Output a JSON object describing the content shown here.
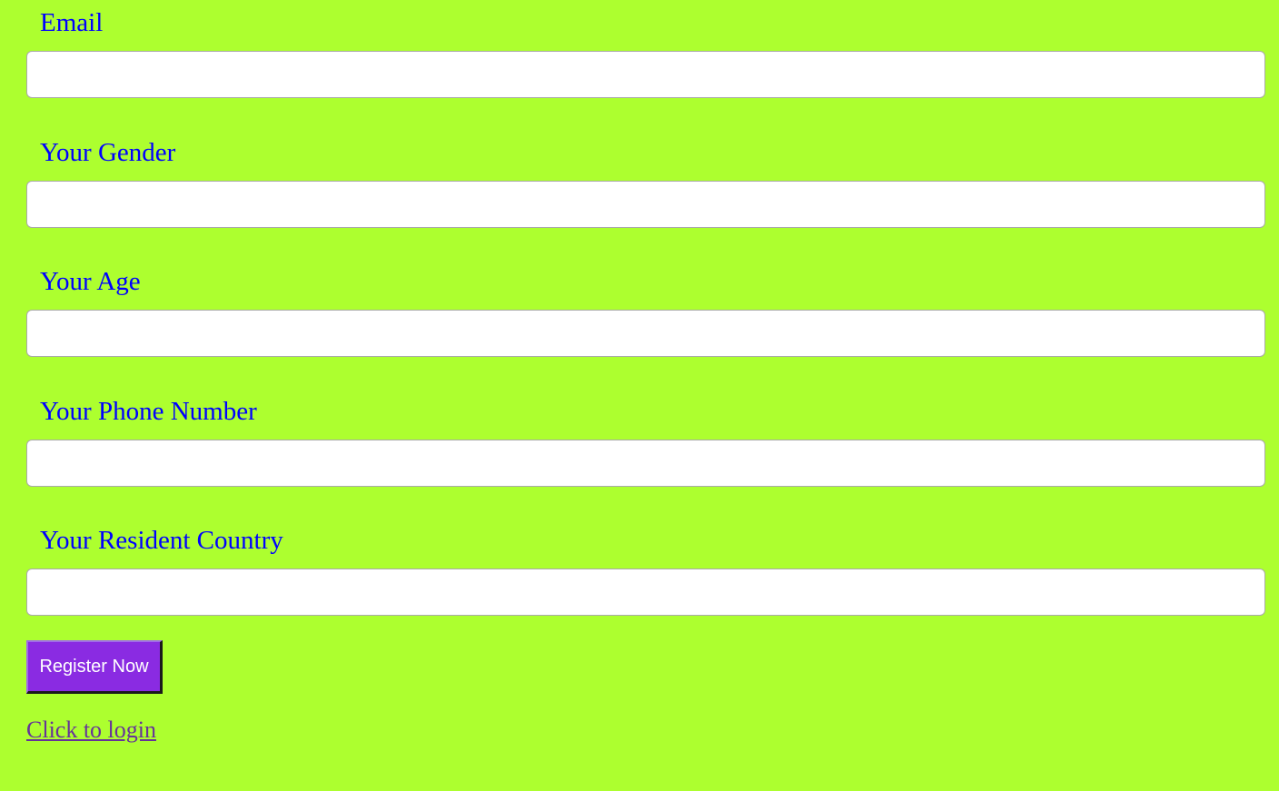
{
  "form": {
    "fields": [
      {
        "label": "Email",
        "value": "",
        "placeholder": ""
      },
      {
        "label": "Your Gender",
        "value": "",
        "placeholder": ""
      },
      {
        "label": "Your Age",
        "value": "",
        "placeholder": ""
      },
      {
        "label": "Your Phone Number",
        "value": "",
        "placeholder": ""
      },
      {
        "label": "Your Resident Country",
        "value": "",
        "placeholder": ""
      }
    ],
    "submit_label": "Register Now",
    "login_link_label": "Click to login"
  },
  "colors": {
    "background": "#adff2f",
    "label": "#0000ff",
    "button_bg": "#8a2be2",
    "button_text": "#ffffff",
    "link": "#663399"
  }
}
